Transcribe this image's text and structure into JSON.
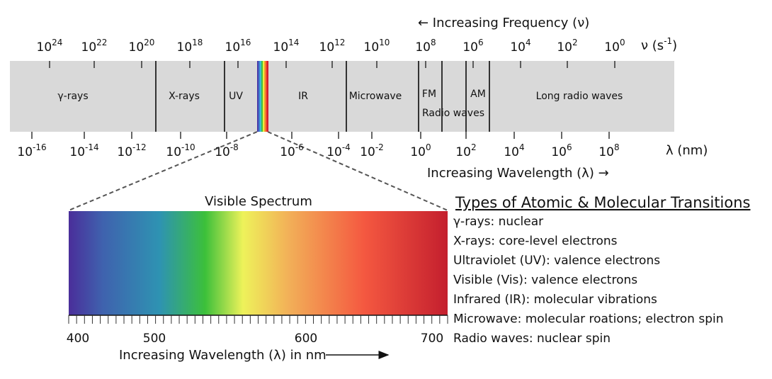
{
  "frequency": {
    "title": "← Increasing Frequency (ν)",
    "ticks": [
      {
        "base": "10",
        "exp": "24"
      },
      {
        "base": "10",
        "exp": "22"
      },
      {
        "base": "10",
        "exp": "20"
      },
      {
        "base": "10",
        "exp": "18"
      },
      {
        "base": "10",
        "exp": "16"
      },
      {
        "base": "10",
        "exp": "14"
      },
      {
        "base": "10",
        "exp": "12"
      },
      {
        "base": "10",
        "exp": "10"
      },
      {
        "base": "10",
        "exp": "8"
      },
      {
        "base": "10",
        "exp": "6"
      },
      {
        "base": "10",
        "exp": "4"
      },
      {
        "base": "10",
        "exp": "2"
      },
      {
        "base": "10",
        "exp": "0"
      }
    ],
    "unit": {
      "text": "ν (s",
      "exp": "-1",
      "tail": ")"
    }
  },
  "wavelength": {
    "title": "Increasing Wavelength (λ) →",
    "ticks": [
      {
        "base": "10",
        "exp": "-16"
      },
      {
        "base": "10",
        "exp": "-14"
      },
      {
        "base": "10",
        "exp": "-12"
      },
      {
        "base": "10",
        "exp": "-10"
      },
      {
        "base": "10",
        "exp": "-8"
      },
      {
        "base": "10",
        "exp": "-6"
      },
      {
        "base": "10",
        "exp": "-4"
      },
      {
        "base": "10",
        "exp": "-2"
      },
      {
        "base": "10",
        "exp": "0"
      },
      {
        "base": "10",
        "exp": "2"
      },
      {
        "base": "10",
        "exp": "4"
      },
      {
        "base": "10",
        "exp": "6"
      },
      {
        "base": "10",
        "exp": "8"
      }
    ],
    "unit": "λ (nm)"
  },
  "regions": [
    "γ-rays",
    "X-rays",
    "UV",
    "IR",
    "Microwave",
    "FM",
    "AM",
    "Radio waves",
    "Long radio waves"
  ],
  "visible": {
    "title": "Visible Spectrum",
    "ticks": [
      "400",
      "500",
      "600",
      "700"
    ],
    "axis_label": "Increasing Wavelength (λ) in nm"
  },
  "transitions": {
    "title": "Types of  Atomic & Molecular Transitions",
    "items": [
      "γ-rays: nuclear",
      "X-rays: core-level electrons",
      "Ultraviolet (UV): valence electrons",
      "Visible (Vis): valence electrons",
      "Infrared (IR): molecular vibrations",
      "Microwave: molecular roations; electron spin",
      "Radio waves: nuclear spin"
    ]
  }
}
